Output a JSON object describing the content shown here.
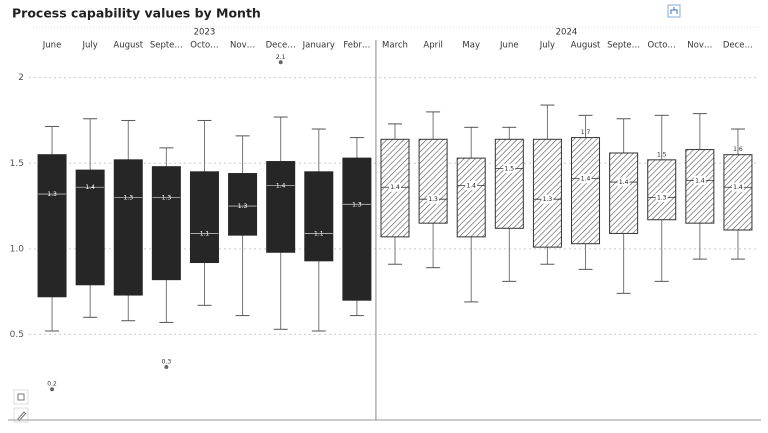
{
  "chart_data": {
    "type": "boxplot",
    "title": "Process capability values by Month",
    "ylim": [
      0,
      2.15
    ],
    "yticks": [
      0.5,
      {
        "value": 1,
        "label": "1.0"
      },
      1.5,
      2
    ],
    "grid": true,
    "groups": [
      {
        "name": "2023",
        "style": "solid",
        "color": "#262626",
        "categories": [
          "June",
          "July",
          "August",
          "Septe…",
          "Octo…",
          "Nov…",
          "Dece…",
          "January",
          "Febr…"
        ],
        "min": [
          0.52,
          0.6,
          0.58,
          0.57,
          0.67,
          0.61,
          0.53,
          0.52,
          0.61
        ],
        "q1": [
          0.72,
          0.79,
          0.73,
          0.82,
          0.92,
          1.08,
          0.98,
          0.93,
          0.7
        ],
        "median": [
          1.32,
          1.36,
          1.3,
          1.3,
          1.09,
          1.25,
          1.37,
          1.09,
          1.26
        ],
        "median_labels": [
          "1.3",
          "1.4",
          "1.3",
          "1.3",
          "1.1",
          "1.3",
          "1.4",
          "1.1",
          "1.3"
        ],
        "q3": [
          1.55,
          1.46,
          1.52,
          1.48,
          1.45,
          1.44,
          1.51,
          1.45,
          1.53
        ],
        "max": [
          1.715,
          1.76,
          1.75,
          1.59,
          1.75,
          1.66,
          1.77,
          1.7,
          1.65
        ],
        "outliers": [
          [
            0.18
          ],
          [],
          [],
          [
            0.31
          ],
          [],
          [],
          [
            2.09
          ],
          [],
          []
        ],
        "outlier_labels": [
          [
            "0.2"
          ],
          [],
          [],
          [
            "0.3"
          ],
          [],
          [],
          [
            "2.1"
          ],
          [],
          []
        ],
        "q3_labels": [
          null,
          null,
          null,
          null,
          null,
          null,
          null,
          null,
          null
        ]
      },
      {
        "name": "2024",
        "style": "hatched",
        "color": "#404040",
        "categories": [
          "March",
          "April",
          "May",
          "June",
          "July",
          "August",
          "Septe…",
          "Octo…",
          "Nov…",
          "Dece…"
        ],
        "min": [
          0.91,
          0.89,
          0.69,
          0.81,
          0.91,
          0.88,
          0.74,
          0.81,
          0.94,
          0.94
        ],
        "q1": [
          1.07,
          1.15,
          1.07,
          1.12,
          1.01,
          1.03,
          1.09,
          1.17,
          1.15,
          1.11
        ],
        "median": [
          1.36,
          1.29,
          1.37,
          1.47,
          1.29,
          1.41,
          1.39,
          1.3,
          1.4,
          1.36
        ],
        "median_labels": [
          "1.4",
          "1.3",
          "1.4",
          "1.5",
          "1.3",
          "1.4",
          "1.4",
          "1.3",
          "1.4",
          "1.4"
        ],
        "q3": [
          1.64,
          1.64,
          1.53,
          1.64,
          1.64,
          1.65,
          1.56,
          1.52,
          1.58,
          1.55
        ],
        "max": [
          1.73,
          1.8,
          1.71,
          1.71,
          1.84,
          1.78,
          1.76,
          1.78,
          1.79,
          1.7
        ],
        "outliers": [
          [],
          [],
          [],
          [],
          [],
          [],
          [],
          [],
          [],
          []
        ],
        "outlier_labels": [
          [],
          [],
          [],
          [],
          [],
          [],
          [],
          [],
          [],
          []
        ],
        "q3_labels": [
          null,
          null,
          null,
          null,
          null,
          "1.7",
          null,
          "1.5",
          null,
          "1.6"
        ]
      }
    ]
  }
}
